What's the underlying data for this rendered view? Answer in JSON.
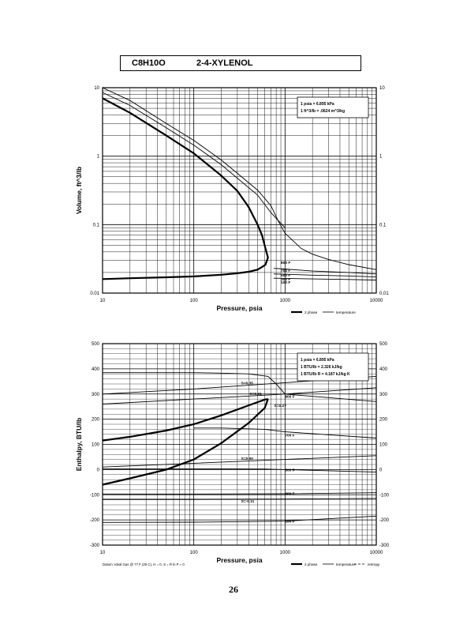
{
  "header": {
    "formula": "C8H10O",
    "compound": "2-4-XYLENOL"
  },
  "page_number": "26",
  "chart_data": [
    {
      "type": "line",
      "x_scale": "log",
      "y_scale": "log",
      "xlim": [
        10,
        10000
      ],
      "ylim": [
        0.01,
        10
      ],
      "xlabel": "Pressure,  psia",
      "ylabel": "Volume, ft^3/lb",
      "x_ticks": [
        "10",
        "100",
        "1000",
        "10000"
      ],
      "y_ticks": [
        "0.01",
        "0.1",
        "1",
        "10"
      ],
      "legend": [
        "2 phase",
        "temperature"
      ],
      "conversions": [
        "1 psia = 6.895 kPa",
        "1 ft^3/lb = .0624 m^3/kg"
      ],
      "isotherm_labels": [
        {
          "text": "800 F",
          "x": 900,
          "y": 0.028
        },
        {
          "text": "700 F",
          "x": 900,
          "y": 0.0215
        },
        {
          "text": "500 F",
          "x": 900,
          "y": 0.0185
        },
        {
          "text": "300 F",
          "x": 900,
          "y": 0.0162
        },
        {
          "text": "100 F",
          "x": 900,
          "y": 0.0145
        }
      ],
      "series": [
        {
          "name": "2 phase",
          "x": [
            10,
            20,
            50,
            100,
            200,
            300,
            400,
            500,
            560,
            610,
            650,
            610,
            560,
            500,
            400,
            300,
            200,
            100,
            50,
            20,
            10
          ],
          "y": [
            7,
            4.3,
            2.0,
            1.1,
            0.52,
            0.31,
            0.18,
            0.1,
            0.07,
            0.045,
            0.033,
            0.026,
            0.024,
            0.022,
            0.0205,
            0.0195,
            0.0185,
            0.0175,
            0.017,
            0.0165,
            0.016
          ]
        },
        {
          "x": [
            10,
            20,
            50,
            100,
            200,
            500,
            700,
            1000
          ],
          "y": [
            8.5,
            5.5,
            2.6,
            1.45,
            0.75,
            0.27,
            0.15,
            0.09
          ]
        },
        {
          "x": [
            10,
            20,
            50,
            100,
            200,
            500,
            700,
            850
          ],
          "y": [
            10,
            6.5,
            3.0,
            1.7,
            0.88,
            0.32,
            0.19,
            0.11
          ]
        },
        {
          "x": [
            850,
            1000,
            1500,
            2000,
            3000,
            5000,
            10000
          ],
          "y": [
            0.11,
            0.075,
            0.045,
            0.037,
            0.031,
            0.026,
            0.022
          ]
        },
        {
          "x": [
            750,
            1000,
            2000,
            5000,
            10000
          ],
          "y": [
            0.023,
            0.0225,
            0.021,
            0.02,
            0.019
          ]
        },
        {
          "x": [
            750,
            1000,
            2000,
            5000,
            10000
          ],
          "y": [
            0.019,
            0.0188,
            0.0183,
            0.0178,
            0.0172
          ]
        },
        {
          "x": [
            750,
            1000,
            2000,
            5000,
            10000
          ],
          "y": [
            0.0165,
            0.0164,
            0.0161,
            0.0158,
            0.0155
          ]
        }
      ]
    },
    {
      "type": "line",
      "x_scale": "log",
      "xlim": [
        10,
        10000
      ],
      "ylim": [
        -300,
        500
      ],
      "xlabel": "Pressure,  psia",
      "ylabel": "Enthalpy, BTU/lb",
      "x_ticks": [
        "10",
        "100",
        "1000",
        "10000"
      ],
      "y_ticks": [
        "-300",
        "-200",
        "-100",
        "0",
        "100",
        "200",
        "300",
        "400",
        "500"
      ],
      "legend": [
        "2 phase",
        "temperature",
        "entropy"
      ],
      "conversions": [
        "1 psia = 6.895 kPa",
        "1 BTU/lb = 2.326 kJ/kg",
        "1 BTU/lb R = 4.187 kJ/kg K"
      ],
      "footnote": "Datum: Ideal Gas @ 77 F (25 C),  H = 0,  S = R ln P = 0",
      "isotherm_labels": [
        {
          "text": "800 F",
          "x": 1000,
          "y": 292
        },
        {
          "text": "700 F",
          "x": 1000,
          "y": 138
        },
        {
          "text": "500 F",
          "x": 1000,
          "y": 0
        },
        {
          "text": "300 F",
          "x": 1000,
          "y": -95
        },
        {
          "text": "100 F",
          "x": 1000,
          "y": -205
        }
      ],
      "entropy_labels": [
        {
          "text": "S=0.35",
          "x": 330,
          "y": 345
        },
        {
          "text": "S=0.31",
          "x": 410,
          "y": 303
        },
        {
          "text": "S=0.27",
          "x": 760,
          "y": 255
        },
        {
          "text": "S=0.00",
          "x": 330,
          "y": 45
        },
        {
          "text": "S=-0.11",
          "x": 330,
          "y": -125
        }
      ],
      "series": [
        {
          "name": "2 phase",
          "x": [
            10,
            20,
            50,
            100,
            200,
            400,
            600,
            650
          ],
          "y": [
            115,
            130,
            155,
            180,
            215,
            255,
            278,
            280
          ]
        },
        {
          "name": "2 phase",
          "x": [
            10,
            20,
            50,
            100,
            200,
            400,
            600,
            650
          ],
          "y": [
            -60,
            -35,
            0,
            40,
            105,
            185,
            245,
            280
          ]
        },
        {
          "x": [
            10,
            100,
            200,
            400,
            650,
            800,
            1000,
            10000
          ],
          "y": [
            385,
            385,
            383,
            380,
            370,
            340,
            300,
            270
          ]
        },
        {
          "x": [
            100,
            200,
            600,
            1000,
            10000
          ],
          "y": [
            165,
            165,
            160,
            150,
            125
          ]
        },
        {
          "x": [
            10,
            100,
            600,
            1000,
            10000
          ],
          "y": [
            3,
            3,
            2,
            0,
            -10
          ]
        },
        {
          "x": [
            10,
            100,
            1000,
            10000
          ],
          "y": [
            -97,
            -97,
            -96,
            -92
          ]
        },
        {
          "x": [
            10,
            100,
            1000,
            10000
          ],
          "y": [
            -210,
            -209,
            -205,
            -185
          ]
        },
        {
          "x": [
            10,
            100,
            1000,
            10000
          ],
          "y": [
            300,
            320,
            345,
            370
          ]
        },
        {
          "x": [
            10,
            100,
            1000,
            10000
          ],
          "y": [
            260,
            280,
            300,
            325
          ]
        },
        {
          "x": [
            10,
            100,
            1000,
            10000
          ],
          "y": [
            10,
            25,
            40,
            55
          ]
        },
        {
          "x": [
            10,
            100,
            1000,
            10000
          ],
          "y": [
            -118,
            -118,
            -117,
            -115
          ]
        }
      ]
    }
  ]
}
